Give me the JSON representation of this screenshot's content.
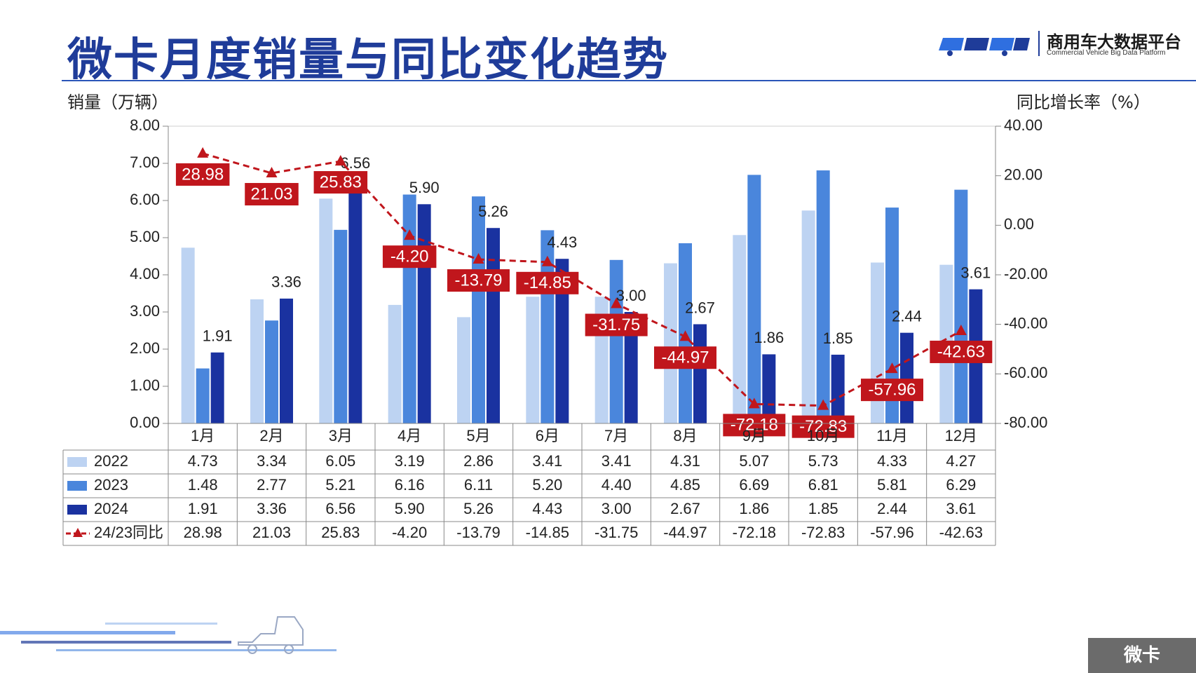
{
  "page": {
    "title": "微卡月度销量与同比变化趋势",
    "logo_name": "商用车大数据平台",
    "logo_sub": "Commercial Vehicle Big Data Platform",
    "left_axis_title": "销量（万辆）",
    "right_axis_title": "同比增长率（%）",
    "footer_tag": "微卡"
  },
  "chart_data": {
    "type": "bar",
    "categories": [
      "1月",
      "2月",
      "3月",
      "4月",
      "5月",
      "6月",
      "7月",
      "8月",
      "9月",
      "10月",
      "11月",
      "12月"
    ],
    "series": [
      {
        "name": "2022",
        "type": "bar",
        "axis": "left",
        "color": "#bdd3f2",
        "values": [
          4.73,
          3.34,
          6.05,
          3.19,
          2.86,
          3.41,
          3.41,
          4.31,
          5.07,
          5.73,
          4.33,
          4.27
        ],
        "labels": [
          "4.73",
          "3.34",
          "6.05",
          "3.19",
          "2.86",
          "3.41",
          "3.41",
          "4.31",
          "5.07",
          "5.73",
          "4.33",
          "4.27"
        ]
      },
      {
        "name": "2023",
        "type": "bar",
        "axis": "left",
        "color": "#4a86dc",
        "values": [
          1.48,
          2.77,
          5.21,
          6.16,
          6.11,
          5.2,
          4.4,
          4.85,
          6.69,
          6.81,
          5.81,
          6.29
        ],
        "labels": [
          "1.48",
          "2.77",
          "5.21",
          "6.16",
          "6.11",
          "5.20",
          "4.40",
          "4.85",
          "6.69",
          "6.81",
          "5.81",
          "6.29"
        ]
      },
      {
        "name": "2024",
        "type": "bar",
        "axis": "left",
        "color": "#1a32a0",
        "values": [
          1.91,
          3.36,
          6.56,
          5.9,
          5.26,
          4.43,
          3.0,
          2.67,
          1.86,
          1.85,
          2.44,
          3.61
        ],
        "labels": [
          "1.91",
          "3.36",
          "6.56",
          "5.90",
          "5.26",
          "4.43",
          "3.00",
          "2.67",
          "1.86",
          "1.85",
          "2.44",
          "3.61"
        ]
      },
      {
        "name": "24/23同比",
        "type": "line",
        "axis": "right",
        "color": "#c0161c",
        "values": [
          28.98,
          21.03,
          25.83,
          -4.2,
          -13.79,
          -14.85,
          -31.75,
          -44.97,
          -72.18,
          -72.83,
          -57.96,
          -42.63
        ],
        "labels": [
          "28.98",
          "21.03",
          "25.83",
          "-4.20",
          "-13.79",
          "-14.85",
          "-31.75",
          "-44.97",
          "-72.18",
          "-72.83",
          "-57.96",
          "-42.63"
        ]
      }
    ],
    "left_axis": {
      "min": 0,
      "max": 8,
      "ticks": [
        "0.00",
        "1.00",
        "2.00",
        "3.00",
        "4.00",
        "5.00",
        "6.00",
        "7.00",
        "8.00"
      ]
    },
    "right_axis": {
      "min": -80,
      "max": 40,
      "ticks": [
        "-80.00",
        "-60.00",
        "-40.00",
        "-20.00",
        "0.00",
        "20.00",
        "40.00"
      ]
    },
    "grid": false,
    "legend": "data-table-below"
  }
}
